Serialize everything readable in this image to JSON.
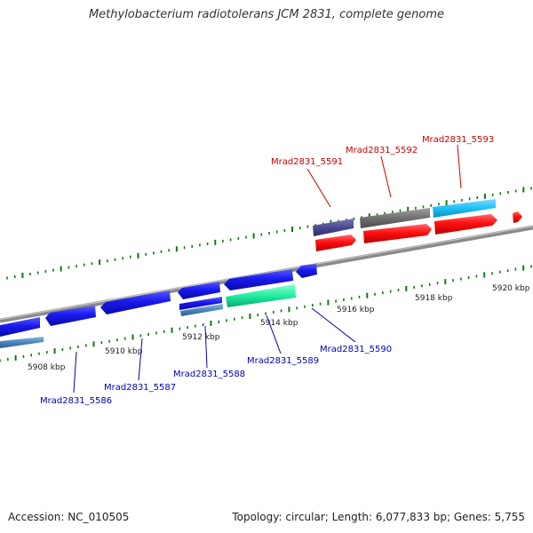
{
  "title": "Methylobacterium radiotolerans JCM 2831, complete genome",
  "footer": {
    "accession": "Accession: NC_010505",
    "topology": "Topology: circular; Length: 6,077,833 bp; Genes: 5,755"
  },
  "kbp_labels": [
    "5908 kbp",
    "5910 kbp",
    "5912 kbp",
    "5914 kbp",
    "5916 kbp",
    "5918 kbp",
    "5920 kbp"
  ],
  "gene_labels_top": [
    "Mrad2831_5591",
    "Mrad2831_5592",
    "Mrad2831_5593"
  ],
  "gene_labels_bottom": [
    "Mrad2831_5586",
    "Mrad2831_5587",
    "Mrad2831_5588",
    "Mrad2831_5589",
    "Mrad2831_5590"
  ],
  "colors": {
    "backbone": "#8a8a8a",
    "tick": "#117711",
    "forward_gene": "#ff1010",
    "reverse_gene": "#1a1aee",
    "label_top": "#cc0000",
    "label_bottom": "#0000bb",
    "slate_gene": "#4a4a90",
    "gray_gene": "#707070",
    "sky_gene": "#1ec0f5",
    "mint_gene": "#22eea0",
    "steel_gene": "#4a86c0"
  }
}
